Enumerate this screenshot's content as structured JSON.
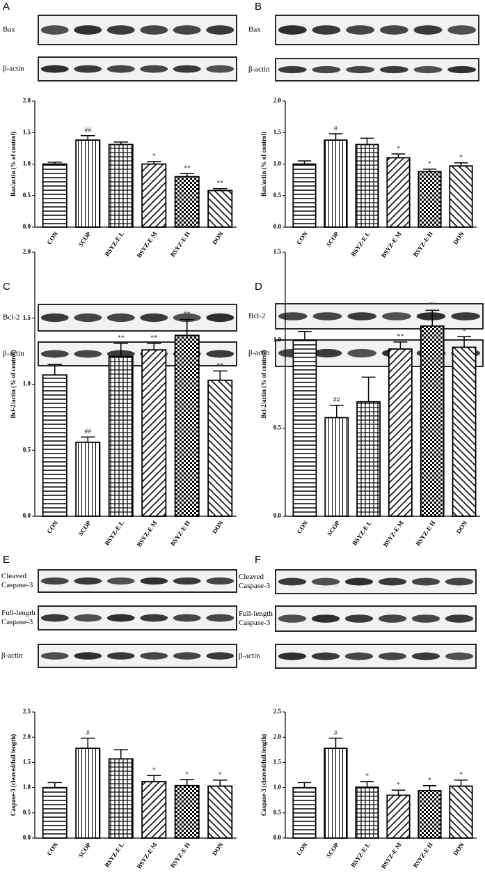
{
  "chart_data": [
    {
      "type": "bar",
      "panel": "A",
      "blots": [
        [
          "Bax"
        ],
        [
          "β-actin"
        ]
      ],
      "ylabel": "Bax/actin (% of control)",
      "categories": [
        "CON",
        "SCOP",
        "BSYZ-E L",
        "BSYZ-E M",
        "BSYZ-E H",
        "DON"
      ],
      "values": [
        1.0,
        1.38,
        1.31,
        1.0,
        0.8,
        0.58
      ],
      "errors": [
        0.03,
        0.07,
        0.04,
        0.04,
        0.05,
        0.03
      ],
      "annotations": [
        null,
        "##",
        null,
        "*",
        "**",
        "**"
      ],
      "ylim": [
        0,
        2
      ],
      "yticks": [
        {
          "value": 0,
          "label": "0.0"
        },
        {
          "value": 0.5,
          "label": "0.5"
        },
        {
          "value": 1,
          "label": "1.0"
        },
        {
          "value": 1.5,
          "label": "1.5"
        },
        {
          "value": 2,
          "label": "2.0"
        }
      ]
    },
    {
      "type": "bar",
      "panel": "B",
      "blots": [
        [
          "Bax"
        ],
        [
          "β-actin"
        ]
      ],
      "ylabel": "Bax/actin (% of control)",
      "categories": [
        "CON",
        "SCOP",
        "BSYZ-E L",
        "BSYZ-E M",
        "BSYZ-E H",
        "DON"
      ],
      "values": [
        1.0,
        1.38,
        1.31,
        1.1,
        0.88,
        0.97
      ],
      "errors": [
        0.05,
        0.1,
        0.1,
        0.06,
        0.04,
        0.05
      ],
      "annotations": [
        null,
        "#",
        null,
        "*",
        "*",
        "*"
      ],
      "ylim": [
        0,
        2
      ],
      "yticks": [
        {
          "value": 0,
          "label": "0.0"
        },
        {
          "value": 0.5,
          "label": "0.5"
        },
        {
          "value": 1,
          "label": "1.0"
        },
        {
          "value": 1.5,
          "label": "1.5"
        },
        {
          "value": 2,
          "label": "2.0"
        }
      ]
    },
    {
      "type": "bar",
      "panel": "C",
      "blots": [
        [
          "Bcl-2"
        ],
        [
          "β-actin"
        ]
      ],
      "ylabel": "Bcl-2/actin (% of control)",
      "categories": [
        "CON",
        "SCOP",
        "BSYZ-E L",
        "BSYZ-E M",
        "BSYZ-E H",
        "DON"
      ],
      "values": [
        1.07,
        0.56,
        1.21,
        1.26,
        1.37,
        1.03
      ],
      "errors": [
        0.08,
        0.04,
        0.1,
        0.05,
        0.12,
        0.07
      ],
      "annotations": [
        null,
        "##",
        "**",
        "**",
        "**",
        "**"
      ],
      "ylim": [
        0,
        2
      ],
      "yticks": [
        {
          "value": 0,
          "label": "0.0"
        },
        {
          "value": 0.5,
          "label": "0.5"
        },
        {
          "value": 1,
          "label": "1.0"
        },
        {
          "value": 1.5,
          "label": "1.5"
        },
        {
          "value": 2,
          "label": "2.0"
        }
      ]
    },
    {
      "type": "bar",
      "panel": "D",
      "blots": [
        [
          "Bcl-2"
        ],
        [
          "β-actin"
        ]
      ],
      "ylabel": "Bcl-2/actin (% of control)",
      "categories": [
        "CON",
        "SCOP",
        "BSYZ-E L",
        "BSYZ-E M",
        "BSYZ-E H",
        "DON"
      ],
      "values": [
        1.0,
        0.56,
        0.65,
        0.95,
        1.08,
        0.96
      ],
      "errors": [
        0.05,
        0.07,
        0.14,
        0.04,
        0.09,
        0.06
      ],
      "annotations": [
        null,
        "##",
        null,
        "**",
        "**",
        "*"
      ],
      "ylim": [
        0,
        1.5
      ],
      "yticks": [
        {
          "value": 0,
          "label": "0.0"
        },
        {
          "value": 0.5,
          "label": "0.5"
        },
        {
          "value": 1,
          "label": "1.0"
        },
        {
          "value": 1.5,
          "label": "1.5"
        }
      ]
    },
    {
      "type": "bar",
      "panel": "E",
      "blots": [
        [
          "Cleaved",
          "Caspase-3"
        ],
        [
          "Full-length",
          "Caspase-3"
        ],
        [
          "β-actin"
        ]
      ],
      "ylabel": "Caspase-3 (cleaved/full length)",
      "categories": [
        "CON",
        "SCOP",
        "BSYZ-E L",
        "BSYZ-E M",
        "BSYZ-E H",
        "DON"
      ],
      "values": [
        1.0,
        1.78,
        1.57,
        1.12,
        1.04,
        1.03
      ],
      "errors": [
        0.1,
        0.2,
        0.18,
        0.12,
        0.12,
        0.12
      ],
      "annotations": [
        null,
        "#",
        null,
        "*",
        "*",
        "*"
      ],
      "ylim": [
        0,
        2.5
      ],
      "yticks": [
        {
          "value": 0,
          "label": "0.0"
        },
        {
          "value": 0.5,
          "label": "0.5"
        },
        {
          "value": 1,
          "label": "1.0"
        },
        {
          "value": 1.5,
          "label": "1.5"
        },
        {
          "value": 2,
          "label": "2.0"
        },
        {
          "value": 2.5,
          "label": "2.5"
        }
      ]
    },
    {
      "type": "bar",
      "panel": "F",
      "blots": [
        [
          "Cleaved",
          "Caspase-3"
        ],
        [
          "Full-length",
          "Caspase-3"
        ],
        [
          "β-actin"
        ]
      ],
      "ylabel": "Caspase-3 (cleaved/full length)",
      "categories": [
        "CON",
        "SCOP",
        "BSYZ-E L",
        "BSYZ-E M",
        "BSYZ-E H",
        "DON"
      ],
      "values": [
        1.0,
        1.78,
        1.01,
        0.85,
        0.94,
        1.03
      ],
      "errors": [
        0.1,
        0.2,
        0.11,
        0.1,
        0.1,
        0.12
      ],
      "annotations": [
        null,
        "#",
        "*",
        "*",
        "*",
        "*"
      ],
      "ylim": [
        0,
        2.5
      ],
      "yticks": [
        {
          "value": 0,
          "label": "0.0"
        },
        {
          "value": 0.5,
          "label": "0.5"
        },
        {
          "value": 1,
          "label": "1.0"
        },
        {
          "value": 1.5,
          "label": "1.5"
        },
        {
          "value": 2,
          "label": "2.0"
        },
        {
          "value": 2.5,
          "label": "2.5"
        }
      ]
    }
  ]
}
